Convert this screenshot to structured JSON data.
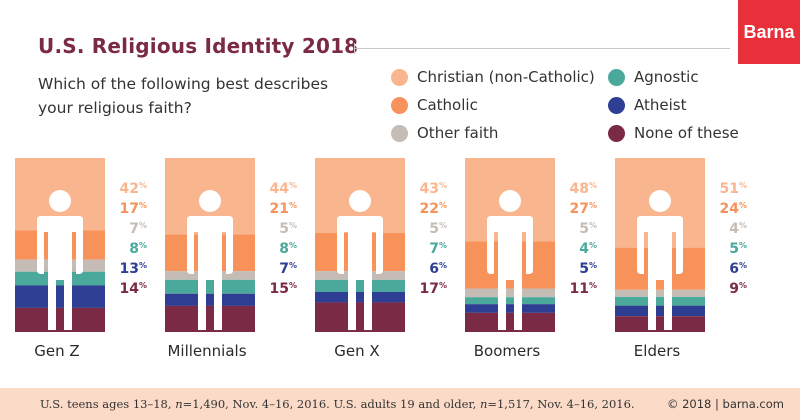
{
  "title": "U.S. Religious Identity 2018",
  "question": "Which of the following best describes your religious faith?",
  "brand": "Barna",
  "footer": {
    "note_parts": [
      "U.S. teens ages 13–18, ",
      "n",
      "=1,490, Nov. 4–16, 2016. U.S. adults 19 and older, ",
      "n",
      "=1,517, Nov. 4–16, 2016."
    ],
    "copyright": "© 2018 | barna.com"
  },
  "colors": {
    "christian": "#f9b58e",
    "catholic": "#f7935a",
    "other": "#c6bcb6",
    "agnostic": "#4aa99b",
    "atheist": "#2e3e92",
    "none": "#7a2a45",
    "title": "#7a2a45",
    "brand": "#e8303a",
    "footer_bg": "#fbdbc7"
  },
  "chart_data": {
    "type": "bar",
    "stacked": true,
    "percent_suffix": "%",
    "categories": [
      "Gen Z",
      "Millennials",
      "Gen X",
      "Boomers",
      "Elders"
    ],
    "series": [
      {
        "name": "Christian (non-Catholic)",
        "key": "christian",
        "values": [
          42,
          44,
          43,
          48,
          51
        ]
      },
      {
        "name": "Catholic",
        "key": "catholic",
        "values": [
          17,
          21,
          22,
          27,
          24
        ]
      },
      {
        "name": "Other faith",
        "key": "other",
        "values": [
          7,
          5,
          5,
          5,
          4
        ]
      },
      {
        "name": "Agnostic",
        "key": "agnostic",
        "values": [
          8,
          8,
          7,
          4,
          5
        ]
      },
      {
        "name": "Atheist",
        "key": "atheist",
        "values": [
          13,
          7,
          6,
          5,
          6
        ]
      },
      {
        "name": "None of these",
        "key": "none",
        "values": [
          14,
          15,
          17,
          11,
          9
        ]
      }
    ],
    "legend_placement": "top-right",
    "grid": false
  }
}
